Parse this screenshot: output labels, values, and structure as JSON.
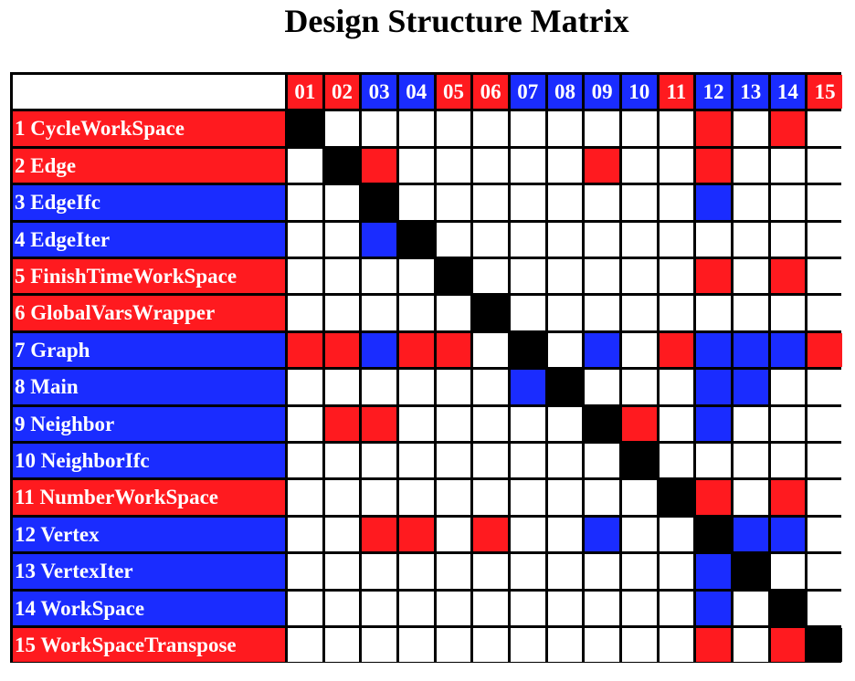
{
  "title": "Design Structure Matrix",
  "colors": {
    "red": "#ff1a1f",
    "blue": "#1a2cff",
    "black": "#000000",
    "white": "#ffffff"
  },
  "modules": [
    {
      "col": "01",
      "label": "1 CycleWorkSpace",
      "color": "red"
    },
    {
      "col": "02",
      "label": "2 Edge",
      "color": "red"
    },
    {
      "col": "03",
      "label": "3 EdgeIfc",
      "color": "blue"
    },
    {
      "col": "04",
      "label": "4 EdgeIter",
      "color": "blue"
    },
    {
      "col": "05",
      "label": "5 FinishTimeWorkSpace",
      "color": "red"
    },
    {
      "col": "06",
      "label": "6 GlobalVarsWrapper",
      "color": "red"
    },
    {
      "col": "07",
      "label": "7 Graph",
      "color": "blue"
    },
    {
      "col": "08",
      "label": "8 Main",
      "color": "blue"
    },
    {
      "col": "09",
      "label": "9 Neighbor",
      "color": "blue"
    },
    {
      "col": "10",
      "label": "10 NeighborIfc",
      "color": "blue"
    },
    {
      "col": "11",
      "label": "11 NumberWorkSpace",
      "color": "red"
    },
    {
      "col": "12",
      "label": "12 Vertex",
      "color": "blue"
    },
    {
      "col": "13",
      "label": "13 VertexIter",
      "color": "blue"
    },
    {
      "col": "14",
      "label": "14 WorkSpace",
      "color": "blue"
    },
    {
      "col": "15",
      "label": "15 WorkSpaceTranspose",
      "color": "red"
    }
  ],
  "matrix": [
    "k..........r.r.",
    ".kr.....r..r...",
    "..k........b...",
    "..bk...........",
    "....k......r.r.",
    ".....k.........",
    "rrbrr.k.b.rbbbr",
    "......bk...bb..",
    ".rr.....kr.b...",
    ".........k.....",
    "..........kr.r.",
    "..rr.r..b..kbb.",
    "...........bk..",
    "...........b.k.",
    "...........r.rk"
  ]
}
